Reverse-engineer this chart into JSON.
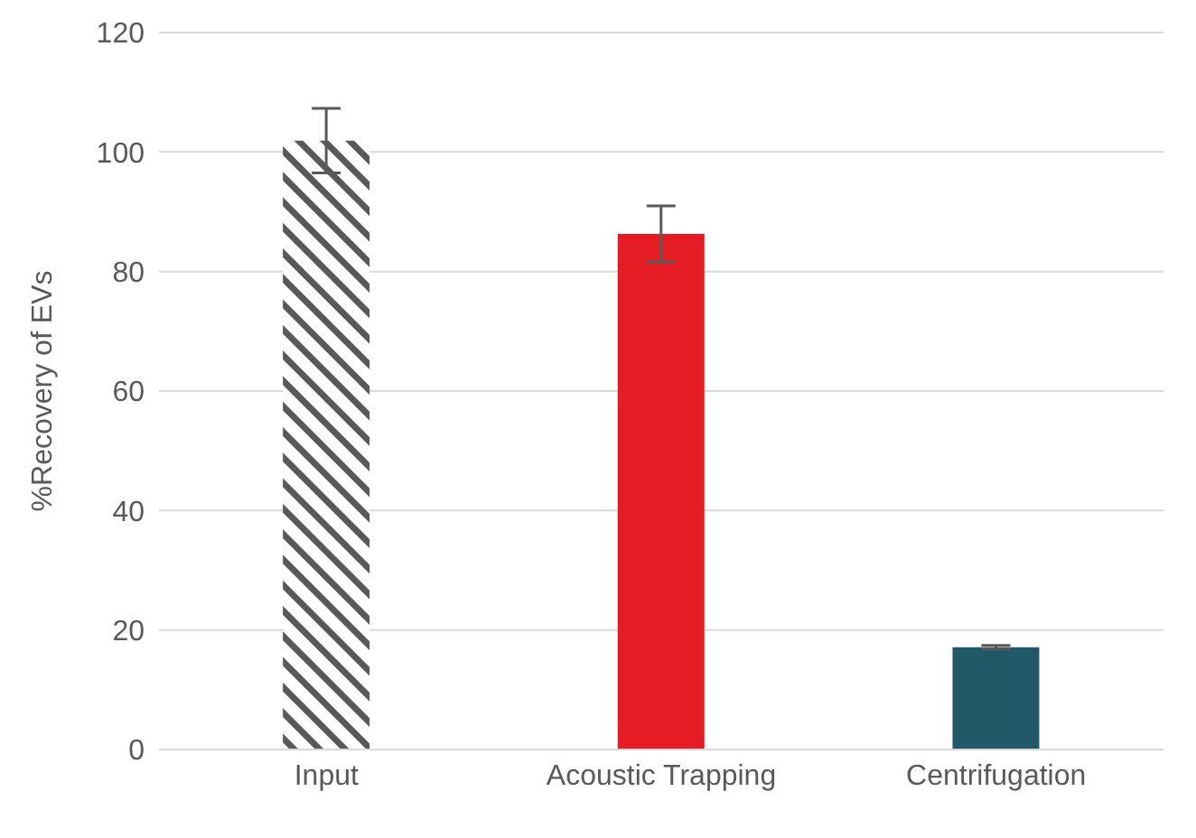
{
  "chart_data": {
    "type": "bar",
    "ylabel": "%Recovery of EVs",
    "categories": [
      "Input",
      "Acoustic Trapping",
      "Centrifugation"
    ],
    "values": [
      101.9,
      86.3,
      17.1
    ],
    "colors": [
      "#595959",
      "#e51c24",
      "#215968"
    ],
    "errors": [
      5.4,
      4.7,
      0.3
    ],
    "ylim": [
      0,
      120
    ],
    "yticks": [
      0,
      20,
      40,
      60,
      80,
      100,
      120
    ],
    "grid": "y"
  }
}
